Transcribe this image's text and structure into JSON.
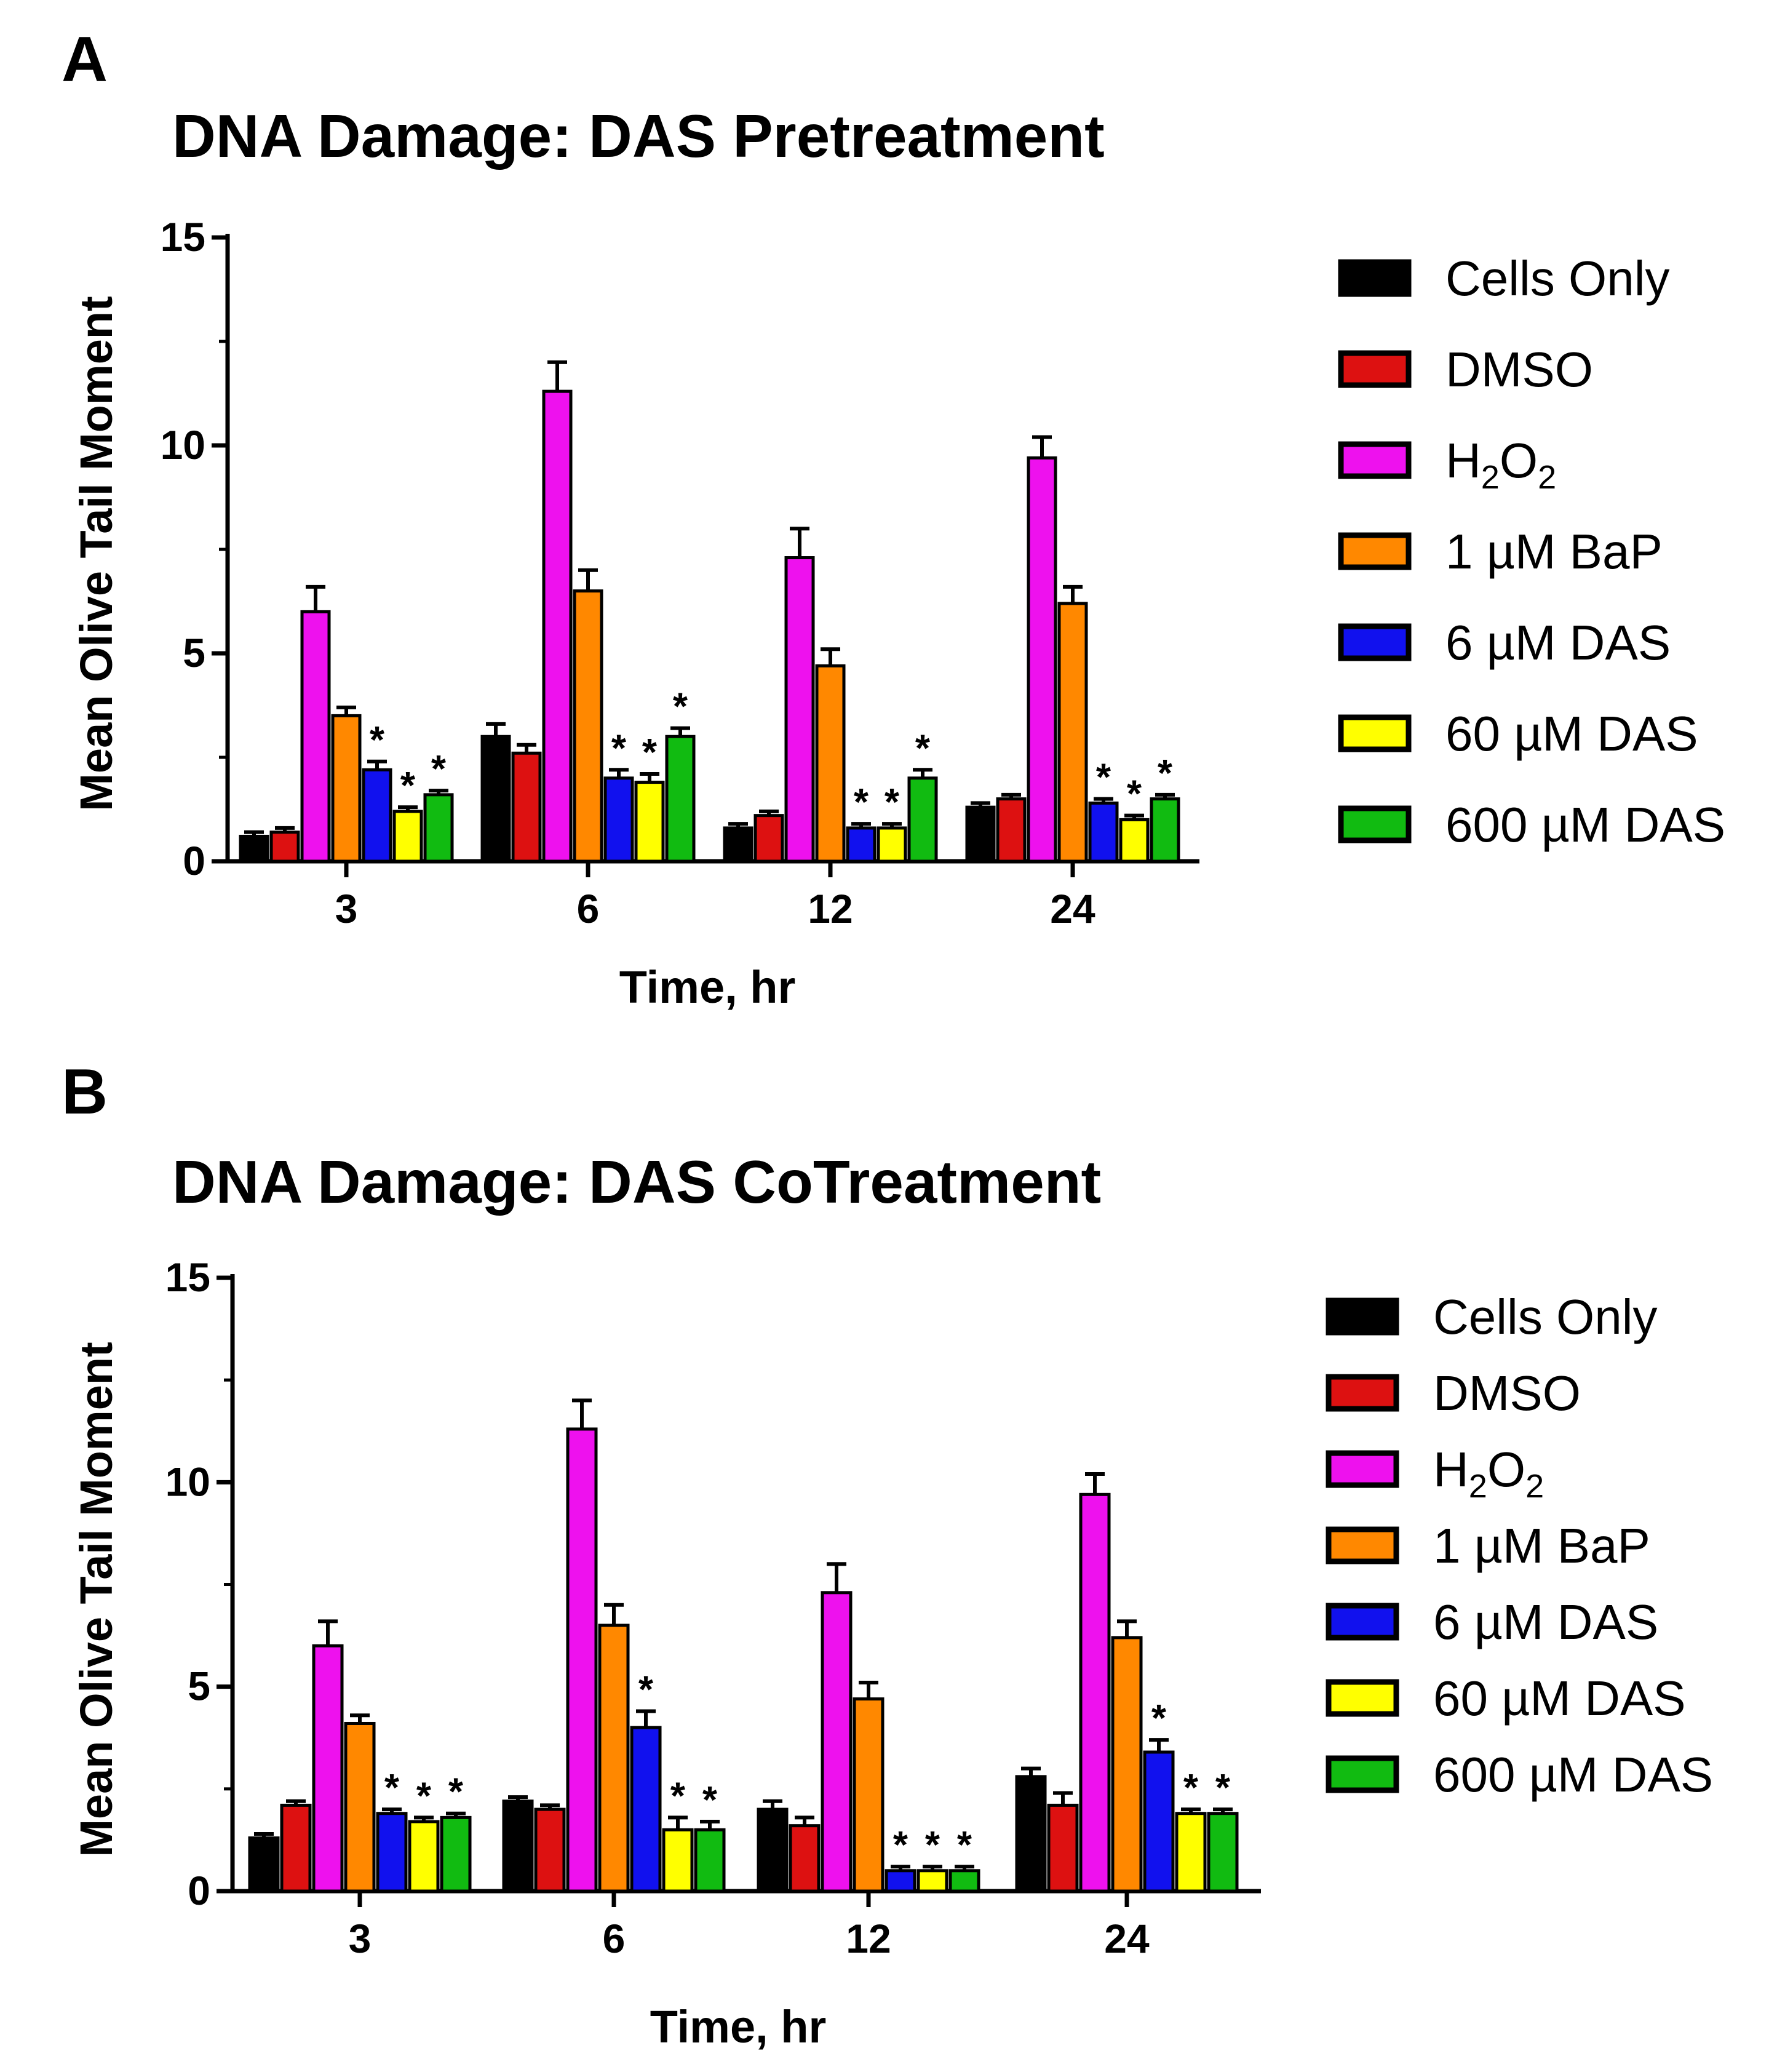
{
  "chart_data": [
    {
      "panel": "A",
      "type": "bar",
      "title": "DNA Damage: DAS Pretreatment",
      "xlabel": "Time, hr",
      "ylabel": "Mean Olive Tail Moment",
      "ylim": [
        0,
        15
      ],
      "yticks": [
        "0",
        "5",
        "10",
        "15"
      ],
      "categories": [
        "3",
        "6",
        "12",
        "24"
      ],
      "legend_position": "right",
      "series": [
        {
          "name": "Cells Only",
          "label_main": "Cells Only",
          "label_sub": "",
          "label_tail": "",
          "color": "#000000",
          "values": [
            0.6,
            3.0,
            0.8,
            1.3
          ],
          "errors": [
            0.1,
            0.3,
            0.1,
            0.1
          ]
        },
        {
          "name": "DMSO",
          "label_main": "DMSO",
          "label_sub": "",
          "label_tail": "",
          "color": "#dd1111",
          "values": [
            0.7,
            2.6,
            1.1,
            1.5
          ],
          "errors": [
            0.1,
            0.2,
            0.1,
            0.1
          ]
        },
        {
          "name": "H2O2",
          "label_main": "H",
          "label_sub": "2",
          "label_tail": "O",
          "label_sub2": "2",
          "color": "#ee11ee",
          "values": [
            6.0,
            11.3,
            7.3,
            9.7
          ],
          "errors": [
            0.6,
            0.7,
            0.7,
            0.5
          ]
        },
        {
          "name": "1 µM BaP",
          "label_main": "1 µM BaP",
          "label_sub": "",
          "label_tail": "",
          "color": "#ff8800",
          "values": [
            3.5,
            6.5,
            4.7,
            6.2
          ],
          "errors": [
            0.2,
            0.5,
            0.4,
            0.4
          ]
        },
        {
          "name": "6 µM DAS",
          "label_main": "6 µM DAS",
          "label_sub": "",
          "label_tail": "",
          "color": "#1111ee",
          "values": [
            2.2,
            2.0,
            0.8,
            1.4
          ],
          "errors": [
            0.2,
            0.2,
            0.1,
            0.1
          ]
        },
        {
          "name": "60 µM DAS",
          "label_main": "60 µM DAS",
          "label_sub": "",
          "label_tail": "",
          "color": "#ffff00",
          "values": [
            1.2,
            1.9,
            0.8,
            1.0
          ],
          "errors": [
            0.1,
            0.2,
            0.1,
            0.1
          ]
        },
        {
          "name": "600 µM DAS",
          "label_main": "600 µM DAS",
          "label_sub": "",
          "label_tail": "",
          "color": "#11bb11",
          "values": [
            1.6,
            3.0,
            2.0,
            1.5
          ],
          "errors": [
            0.1,
            0.2,
            0.2,
            0.1
          ]
        }
      ],
      "significance": [
        {
          "category": "3",
          "series": "6 µM DAS",
          "text": "*"
        },
        {
          "category": "3",
          "series": "60 µM DAS",
          "text": "*"
        },
        {
          "category": "3",
          "series": "600 µM DAS",
          "text": "*"
        },
        {
          "category": "6",
          "series": "6 µM DAS",
          "text": "*"
        },
        {
          "category": "6",
          "series": "60 µM DAS",
          "text": "*"
        },
        {
          "category": "6",
          "series": "600 µM DAS",
          "text": "*"
        },
        {
          "category": "12",
          "series": "6 µM DAS",
          "text": "*"
        },
        {
          "category": "12",
          "series": "60 µM DAS",
          "text": "*"
        },
        {
          "category": "12",
          "series": "600 µM DAS",
          "text": "*"
        },
        {
          "category": "24",
          "series": "6 µM DAS",
          "text": "*"
        },
        {
          "category": "24",
          "series": "60 µM DAS",
          "text": "*"
        },
        {
          "category": "24",
          "series": "600 µM DAS",
          "text": "*"
        }
      ]
    },
    {
      "panel": "B",
      "type": "bar",
      "title": "DNA Damage: DAS CoTreatment",
      "xlabel": "Time, hr",
      "ylabel": "Mean Olive Tail Moment",
      "ylim": [
        0,
        15
      ],
      "yticks": [
        "0",
        "5",
        "10",
        "15"
      ],
      "categories": [
        "3",
        "6",
        "12",
        "24"
      ],
      "legend_position": "right",
      "series": [
        {
          "name": "Cells Only",
          "label_main": "Cells Only",
          "label_sub": "",
          "label_tail": "",
          "color": "#000000",
          "values": [
            1.3,
            2.2,
            2.0,
            2.8
          ],
          "errors": [
            0.1,
            0.1,
            0.2,
            0.2
          ]
        },
        {
          "name": "DMSO",
          "label_main": "DMSO",
          "label_sub": "",
          "label_tail": "",
          "color": "#dd1111",
          "values": [
            2.1,
            2.0,
            1.6,
            2.1
          ],
          "errors": [
            0.1,
            0.1,
            0.2,
            0.3
          ]
        },
        {
          "name": "H2O2",
          "label_main": "H",
          "label_sub": "2",
          "label_tail": "O",
          "label_sub2": "2",
          "color": "#ee11ee",
          "values": [
            6.0,
            11.3,
            7.3,
            9.7
          ],
          "errors": [
            0.6,
            0.7,
            0.7,
            0.5
          ]
        },
        {
          "name": "1 µM BaP",
          "label_main": "1 µM BaP",
          "label_sub": "",
          "label_tail": "",
          "color": "#ff8800",
          "values": [
            4.1,
            6.5,
            4.7,
            6.2
          ],
          "errors": [
            0.2,
            0.5,
            0.4,
            0.4
          ]
        },
        {
          "name": "6 µM DAS",
          "label_main": "6 µM DAS",
          "label_sub": "",
          "label_tail": "",
          "color": "#1111ee",
          "values": [
            1.9,
            4.0,
            0.5,
            3.4
          ],
          "errors": [
            0.1,
            0.4,
            0.1,
            0.3
          ]
        },
        {
          "name": "60 µM DAS",
          "label_main": "60 µM DAS",
          "label_sub": "",
          "label_tail": "",
          "color": "#ffff00",
          "values": [
            1.7,
            1.5,
            0.5,
            1.9
          ],
          "errors": [
            0.1,
            0.3,
            0.1,
            0.1
          ]
        },
        {
          "name": "600 µM DAS",
          "label_main": "600 µM DAS",
          "label_sub": "",
          "label_tail": "",
          "color": "#11bb11",
          "values": [
            1.8,
            1.5,
            0.5,
            1.9
          ],
          "errors": [
            0.1,
            0.2,
            0.1,
            0.1
          ]
        }
      ],
      "significance": [
        {
          "category": "3",
          "series": "6 µM DAS",
          "text": "*"
        },
        {
          "category": "3",
          "series": "60 µM DAS",
          "text": "*"
        },
        {
          "category": "3",
          "series": "600 µM DAS",
          "text": "*"
        },
        {
          "category": "6",
          "series": "6 µM DAS",
          "text": "*"
        },
        {
          "category": "6",
          "series": "60 µM DAS",
          "text": "*"
        },
        {
          "category": "6",
          "series": "600 µM DAS",
          "text": "*"
        },
        {
          "category": "12",
          "series": "6 µM DAS",
          "text": "*"
        },
        {
          "category": "12",
          "series": "60 µM DAS",
          "text": "*"
        },
        {
          "category": "12",
          "series": "600 µM DAS",
          "text": "*"
        },
        {
          "category": "24",
          "series": "6 µM DAS",
          "text": "*"
        },
        {
          "category": "24",
          "series": "60 µM DAS",
          "text": "*"
        },
        {
          "category": "24",
          "series": "600 µM DAS",
          "text": "*"
        }
      ]
    }
  ]
}
